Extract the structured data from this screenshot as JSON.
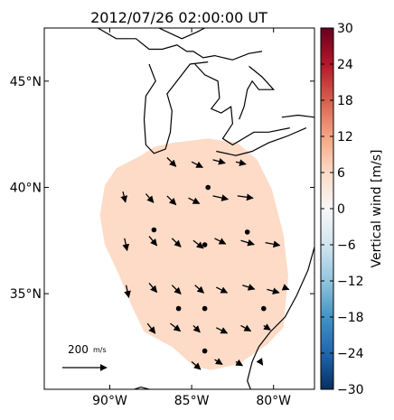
{
  "title": "2012/07/26 02:00:00 UT",
  "chart_data": {
    "type": "map-vector-field",
    "title": "2012/07/26 02:00:00 UT",
    "lon_range": [
      -94.0,
      -77.5
    ],
    "lat_range": [
      30.5,
      47.5
    ],
    "x_ticks": [
      {
        "value": -90,
        "label": "90°W"
      },
      {
        "value": -85,
        "label": "85°W"
      },
      {
        "value": -80,
        "label": "80°W"
      }
    ],
    "y_ticks": [
      {
        "value": 45,
        "label": "45°N"
      },
      {
        "value": 40,
        "label": "40°N"
      },
      {
        "value": 35,
        "label": "35°N"
      }
    ],
    "colorbar": {
      "label": "Vertical wind [m/s]",
      "min": -30,
      "max": 30,
      "ticks": [
        30,
        24,
        18,
        12,
        6,
        0,
        -6,
        -12,
        -18,
        -24,
        -30
      ],
      "tick_labels": [
        "30",
        "24",
        "18",
        "12",
        "6",
        "0",
        "−6",
        "−12",
        "−18",
        "−24",
        "−30"
      ],
      "colormap": "RdBu_r",
      "colors": [
        "#053061",
        "#2166ac",
        "#4393c3",
        "#92c5de",
        "#d1e5f0",
        "#f7f7f7",
        "#fddbc7",
        "#f4a582",
        "#d6604d",
        "#b2182b",
        "#67001f"
      ]
    },
    "field": {
      "value": 3,
      "color": "#fddbc7",
      "outline": [
        [
          -88.1,
          41.5
        ],
        [
          -87.3,
          41.9
        ],
        [
          -86.2,
          42.1
        ],
        [
          -84.0,
          42.3
        ],
        [
          -82.2,
          42.1
        ],
        [
          -81.0,
          41.3
        ],
        [
          -80.1,
          39.9
        ],
        [
          -79.4,
          37.8
        ],
        [
          -79.1,
          35.8
        ],
        [
          -79.4,
          33.4
        ],
        [
          -80.4,
          32.6
        ],
        [
          -82.1,
          31.7
        ],
        [
          -83.8,
          31.4
        ],
        [
          -84.9,
          31.6
        ],
        [
          -86.2,
          32.5
        ],
        [
          -87.9,
          33.2
        ],
        [
          -88.7,
          34.5
        ],
        [
          -89.5,
          36.0
        ],
        [
          -90.3,
          37.3
        ],
        [
          -90.6,
          38.7
        ],
        [
          -90.3,
          40.1
        ],
        [
          -89.6,
          40.9
        ]
      ]
    },
    "reference_vector": {
      "label_text": "200",
      "label_unit": "m/s",
      "magnitude": 200,
      "units": "m/s"
    },
    "wind_vectors": [
      {
        "lon": -86.5,
        "lat": 41.4,
        "u": 40,
        "v": -40
      },
      {
        "lon": -85.0,
        "lat": 41.2,
        "u": 50,
        "v": -25
      },
      {
        "lon": -83.7,
        "lat": 41.3,
        "u": 55,
        "v": -15
      },
      {
        "lon": -82.3,
        "lat": 41.2,
        "u": 45,
        "v": -10
      },
      {
        "lon": -89.2,
        "lat": 39.8,
        "u": 12,
        "v": -48
      },
      {
        "lon": -87.8,
        "lat": 39.7,
        "u": 35,
        "v": -40
      },
      {
        "lon": -86.5,
        "lat": 39.6,
        "u": 40,
        "v": -40
      },
      {
        "lon": -85.2,
        "lat": 39.5,
        "u": 50,
        "v": -25
      },
      {
        "lon": -83.7,
        "lat": 39.6,
        "u": 68,
        "v": -15
      },
      {
        "lon": -82.2,
        "lat": 39.6,
        "u": 70,
        "v": -10
      },
      {
        "lon": -89.1,
        "lat": 37.6,
        "u": 12,
        "v": -55
      },
      {
        "lon": -87.6,
        "lat": 37.7,
        "u": 35,
        "v": -42
      },
      {
        "lon": -86.2,
        "lat": 37.6,
        "u": 40,
        "v": -38
      },
      {
        "lon": -84.9,
        "lat": 37.5,
        "u": 45,
        "v": -35
      },
      {
        "lon": -83.6,
        "lat": 37.6,
        "u": 50,
        "v": -25
      },
      {
        "lon": -82.0,
        "lat": 37.5,
        "u": 60,
        "v": -18
      },
      {
        "lon": -80.5,
        "lat": 37.4,
        "u": 65,
        "v": -12
      },
      {
        "lon": -89.0,
        "lat": 35.4,
        "u": 12,
        "v": -55
      },
      {
        "lon": -87.6,
        "lat": 35.5,
        "u": 35,
        "v": -42
      },
      {
        "lon": -86.2,
        "lat": 35.4,
        "u": 40,
        "v": -40
      },
      {
        "lon": -84.8,
        "lat": 35.4,
        "u": 40,
        "v": -35
      },
      {
        "lon": -83.5,
        "lat": 35.3,
        "u": 50,
        "v": -25
      },
      {
        "lon": -81.9,
        "lat": 35.4,
        "u": 55,
        "v": -18
      },
      {
        "lon": -80.4,
        "lat": 35.2,
        "u": 55,
        "v": -15
      },
      {
        "lon": -79.4,
        "lat": 35.3,
        "u": 25,
        "v": -10
      },
      {
        "lon": -87.7,
        "lat": 33.6,
        "u": 35,
        "v": -45
      },
      {
        "lon": -86.3,
        "lat": 33.6,
        "u": 45,
        "v": -35
      },
      {
        "lon": -84.9,
        "lat": 33.5,
        "u": 30,
        "v": -30
      },
      {
        "lon": -83.5,
        "lat": 33.4,
        "u": 50,
        "v": -25
      },
      {
        "lon": -82.0,
        "lat": 33.5,
        "u": 45,
        "v": -25
      },
      {
        "lon": -80.6,
        "lat": 33.5,
        "u": 30,
        "v": -20
      },
      {
        "lon": -85.0,
        "lat": 31.8,
        "u": 40,
        "v": -35
      },
      {
        "lon": -83.6,
        "lat": 31.9,
        "u": 35,
        "v": -22
      },
      {
        "lon": -82.3,
        "lat": 31.8,
        "u": 30,
        "v": -18
      },
      {
        "lon": -80.8,
        "lat": 31.8,
        "u": 10,
        "v": -15
      }
    ],
    "stations": [
      {
        "lon": -84.0,
        "lat": 40.0
      },
      {
        "lon": -87.3,
        "lat": 38.0
      },
      {
        "lon": -84.2,
        "lat": 37.3
      },
      {
        "lon": -81.6,
        "lat": 37.9
      },
      {
        "lon": -85.8,
        "lat": 34.3
      },
      {
        "lon": -84.2,
        "lat": 34.3
      },
      {
        "lon": -80.6,
        "lat": 34.3
      },
      {
        "lon": -84.2,
        "lat": 32.3
      }
    ],
    "coastlines": [
      [
        [
          -88.2,
          48.0
        ],
        [
          -87.0,
          47.5
        ],
        [
          -85.6,
          47.0
        ],
        [
          -84.7,
          47.3
        ],
        [
          -84.2,
          47.5
        ]
      ],
      [
        [
          -91.4,
          47.8
        ],
        [
          -90.5,
          47.4
        ],
        [
          -89.6,
          47.0
        ],
        [
          -88.4,
          47.0
        ],
        [
          -87.6,
          46.5
        ],
        [
          -86.8,
          46.5
        ],
        [
          -85.9,
          46.7
        ],
        [
          -85.3,
          46.4
        ],
        [
          -84.9,
          46.4
        ],
        [
          -84.3,
          46.1
        ],
        [
          -83.6,
          46.2
        ],
        [
          -82.5,
          46.0
        ],
        [
          -81.5,
          46.3
        ],
        [
          -80.7,
          46.4
        ]
      ],
      [
        [
          -87.6,
          45.8
        ],
        [
          -87.2,
          45.0
        ],
        [
          -87.8,
          44.3
        ],
        [
          -87.9,
          43.2
        ],
        [
          -87.8,
          42.0
        ],
        [
          -87.3,
          41.6
        ],
        [
          -86.6,
          41.8
        ],
        [
          -86.3,
          42.6
        ],
        [
          -86.2,
          43.6
        ],
        [
          -86.5,
          44.4
        ],
        [
          -85.7,
          45.2
        ],
        [
          -85.1,
          45.8
        ],
        [
          -84.0,
          45.9
        ]
      ],
      [
        [
          -84.8,
          45.8
        ],
        [
          -84.2,
          45.3
        ],
        [
          -83.4,
          45.0
        ],
        [
          -83.3,
          44.2
        ],
        [
          -83.8,
          43.7
        ],
        [
          -83.2,
          43.5
        ],
        [
          -82.6,
          43.8
        ],
        [
          -82.5,
          43.0
        ],
        [
          -83.1,
          42.3
        ],
        [
          -82.5,
          42.0
        ],
        [
          -81.2,
          42.6
        ],
        [
          -80.3,
          42.6
        ],
        [
          -79.0,
          42.8
        ]
      ],
      [
        [
          -83.5,
          41.7
        ],
        [
          -82.3,
          41.5
        ],
        [
          -81.3,
          41.7
        ],
        [
          -80.3,
          42.1
        ],
        [
          -79.2,
          42.4
        ],
        [
          -78.0,
          42.8
        ]
      ],
      [
        [
          -81.5,
          45.7
        ],
        [
          -80.7,
          45.2
        ],
        [
          -80.0,
          44.6
        ],
        [
          -80.9,
          44.6
        ],
        [
          -81.3,
          45.0
        ],
        [
          -81.6,
          44.6
        ],
        [
          -81.8,
          43.8
        ],
        [
          -82.1,
          43.2
        ]
      ],
      [
        [
          -79.5,
          43.3
        ],
        [
          -78.5,
          43.4
        ],
        [
          -77.5,
          43.3
        ]
      ],
      [
        [
          -77.5,
          37.2
        ],
        [
          -77.9,
          36.1
        ],
        [
          -78.6,
          34.9
        ],
        [
          -79.3,
          33.9
        ],
        [
          -80.2,
          33.2
        ],
        [
          -80.9,
          32.5
        ],
        [
          -81.3,
          31.8
        ],
        [
          -81.6,
          30.9
        ],
        [
          -81.4,
          30.5
        ]
      ],
      [
        [
          -84.3,
          30.5
        ],
        [
          -85.1,
          30.2
        ],
        [
          -86.4,
          30.4
        ],
        [
          -87.6,
          30.5
        ],
        [
          -88.1,
          30.6
        ],
        [
          -88.9,
          30.4
        ],
        [
          -89.6,
          30.3
        ],
        [
          -90.3,
          30.5
        ]
      ],
      [
        [
          -77.5,
          36.0
        ],
        [
          -77.4,
          34.6
        ]
      ]
    ]
  }
}
